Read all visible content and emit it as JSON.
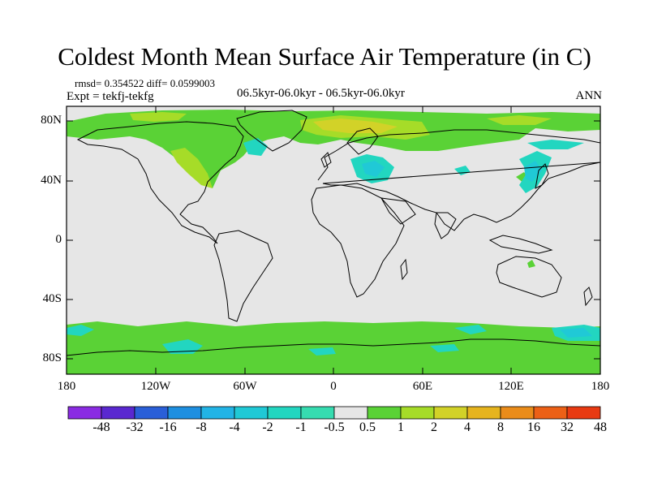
{
  "title": "Coldest Month Mean Surface Air Temperature (in C)",
  "stats_line": "rmsd= 0.354522  diff= 0.0599003",
  "expt_line": "Expt = tekfj-tekfg",
  "period_line": "06.5kyr-06.0kyr - 06.5kyr-06.0kyr",
  "season_label": "ANN",
  "y_ticks": [
    "80N",
    "40N",
    "0",
    "40S",
    "80S"
  ],
  "x_ticks": [
    "180",
    "120W",
    "60W",
    "0",
    "60E",
    "120E",
    "180"
  ],
  "colorbar": {
    "labels": [
      "-48",
      "-32",
      "-16",
      "-8",
      "-4",
      "-2",
      "-1",
      "-0.5",
      "0.5",
      "1",
      "2",
      "4",
      "8",
      "16",
      "32",
      "48"
    ],
    "colors": [
      "#8a2be2",
      "#5a28d0",
      "#2a5fd8",
      "#1e8fe0",
      "#22b4e6",
      "#20c9d6",
      "#22d6c0",
      "#36dcb0",
      "#e6e6e6",
      "#5ad236",
      "#a6dc28",
      "#d2d228",
      "#e6b41e",
      "#ea8c1a",
      "#ec6016",
      "#e83a12"
    ]
  },
  "colors": {
    "background": "#e6e6e6",
    "pos_small": "#5ad236",
    "pos_mid": "#a6dc28",
    "pos_high": "#d2d228",
    "neg_small": "#22d6c0",
    "neg_mid": "#20c9d6"
  }
}
